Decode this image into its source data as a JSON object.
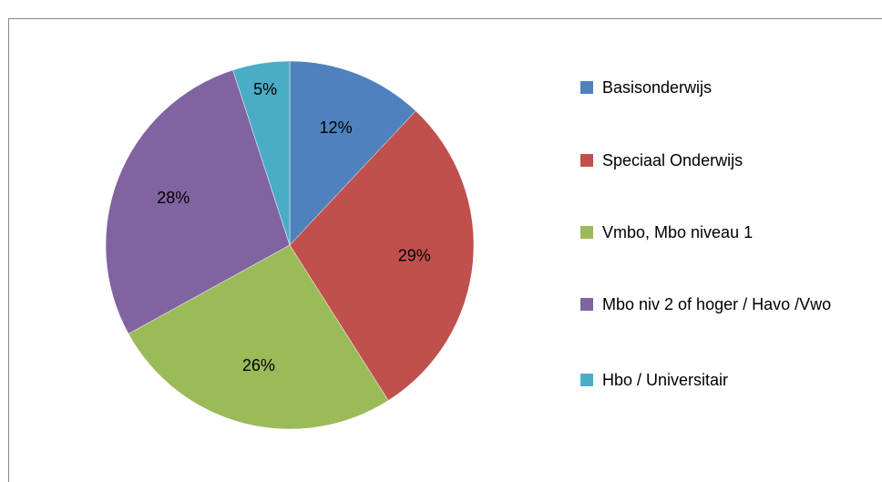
{
  "chart_data": {
    "type": "pie",
    "categories": [
      "Basisonderwijs",
      "Speciaal Onderwijs",
      "Vmbo, Mbo niveau 1",
      "Mbo niv 2 of hoger / Havo /Vwo",
      "Hbo / Universitair"
    ],
    "values": [
      12,
      29,
      26,
      28,
      5
    ],
    "value_labels": [
      "12%",
      "29%",
      "26%",
      "28%",
      "5%"
    ],
    "colors": [
      "#4f81bd",
      "#c0504d",
      "#9bbb59",
      "#8064a2",
      "#4bacc6"
    ],
    "legend": "right"
  }
}
